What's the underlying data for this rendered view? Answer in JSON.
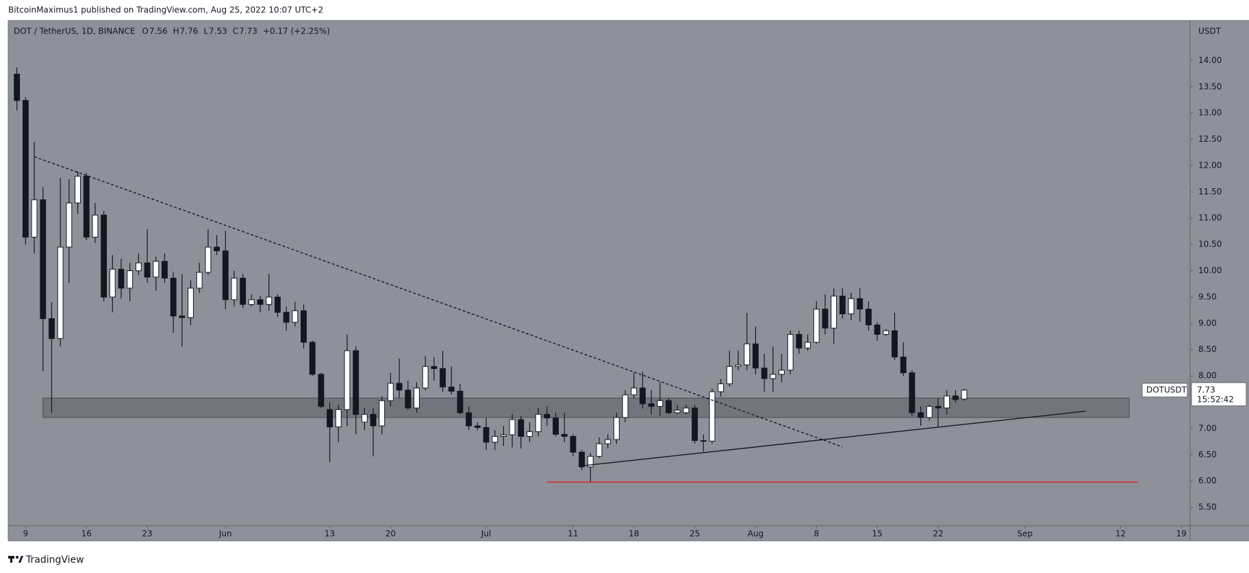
{
  "header": {
    "publisher": "BitcoinMaximus1 published on TradingView.com, Aug 25, 2022 10:07 UTC+2"
  },
  "footer": {
    "brand": "TradingView"
  },
  "chart_data": {
    "type": "candlestick",
    "title": "DOT / TetherUS, 1D, BINANCE",
    "ohlc_labels": [
      "O",
      "H",
      "L",
      "C"
    ],
    "ohlc_values": [
      7.56,
      7.76,
      7.53,
      7.73
    ],
    "change": "+0.17 (+2.25%)",
    "y_unit": "USDT",
    "x": [
      "2022-05-08",
      "2022-05-09",
      "2022-05-10",
      "2022-05-11",
      "2022-05-12",
      "2022-05-13",
      "2022-05-14",
      "2022-05-15",
      "2022-05-16",
      "2022-05-17",
      "2022-05-18",
      "2022-05-19",
      "2022-05-20",
      "2022-05-21",
      "2022-05-22",
      "2022-05-23",
      "2022-05-24",
      "2022-05-25",
      "2022-05-26",
      "2022-05-27",
      "2022-05-28",
      "2022-05-29",
      "2022-05-30",
      "2022-05-31",
      "2022-06-01",
      "2022-06-02",
      "2022-06-03",
      "2022-06-04",
      "2022-06-05",
      "2022-06-06",
      "2022-06-07",
      "2022-06-08",
      "2022-06-09",
      "2022-06-10",
      "2022-06-11",
      "2022-06-12",
      "2022-06-13",
      "2022-06-14",
      "2022-06-15",
      "2022-06-16",
      "2022-06-17",
      "2022-06-18",
      "2022-06-19",
      "2022-06-20",
      "2022-06-21",
      "2022-06-22",
      "2022-06-23",
      "2022-06-24",
      "2022-06-25",
      "2022-06-26",
      "2022-06-27",
      "2022-06-28",
      "2022-06-29",
      "2022-06-30",
      "2022-07-01",
      "2022-07-02",
      "2022-07-03",
      "2022-07-04",
      "2022-07-05",
      "2022-07-06",
      "2022-07-07",
      "2022-07-08",
      "2022-07-09",
      "2022-07-10",
      "2022-07-11",
      "2022-07-12",
      "2022-07-13",
      "2022-07-14",
      "2022-07-15",
      "2022-07-16",
      "2022-07-17",
      "2022-07-18",
      "2022-07-19",
      "2022-07-20",
      "2022-07-21",
      "2022-07-22",
      "2022-07-23",
      "2022-07-24",
      "2022-07-25",
      "2022-07-26",
      "2022-07-27",
      "2022-07-28",
      "2022-07-29",
      "2022-07-30",
      "2022-07-31",
      "2022-08-01",
      "2022-08-02",
      "2022-08-03",
      "2022-08-04",
      "2022-08-05",
      "2022-08-06",
      "2022-08-07",
      "2022-08-08",
      "2022-08-09",
      "2022-08-10",
      "2022-08-11",
      "2022-08-12",
      "2022-08-13",
      "2022-08-14",
      "2022-08-15",
      "2022-08-16",
      "2022-08-17",
      "2022-08-18",
      "2022-08-19",
      "2022-08-20",
      "2022-08-21",
      "2022-08-22",
      "2022-08-23",
      "2022-08-24",
      "2022-08-25"
    ],
    "series": [
      {
        "name": "DOTUSDT",
        "up_color": "#ffffff",
        "down_color": "#131722",
        "open": [
          13.74,
          13.24,
          10.64,
          11.35,
          9.09,
          8.71,
          10.45,
          11.29,
          11.8,
          10.64,
          11.06,
          9.5,
          10.03,
          9.67,
          10.0,
          10.15,
          9.88,
          10.18,
          9.86,
          9.14,
          9.11,
          9.67,
          9.97,
          10.45,
          10.38,
          9.45,
          9.86,
          9.36,
          9.45,
          9.36,
          9.5,
          9.21,
          9.02,
          9.24,
          8.64,
          8.03,
          7.36,
          7.03,
          7.36,
          8.48,
          7.12,
          7.27,
          7.05,
          7.53,
          7.86,
          7.73,
          7.39,
          7.77,
          8.18,
          8.14,
          7.79,
          7.71,
          7.3,
          7.05,
          7.02,
          6.74,
          6.85,
          6.88,
          7.17,
          6.85,
          6.94,
          7.27,
          7.2,
          6.89,
          6.85,
          6.55,
          6.27,
          6.47,
          6.71,
          6.79,
          7.21,
          7.64,
          7.77,
          7.47,
          7.42,
          7.53,
          7.3,
          7.3,
          7.39,
          6.77,
          6.76,
          7.7,
          7.85,
          8.18,
          8.21,
          8.61,
          8.15,
          7.95,
          8.03,
          8.11,
          8.79,
          8.53,
          8.64,
          9.27,
          8.91,
          9.52,
          9.18,
          9.47,
          9.27,
          8.97,
          8.79,
          8.86,
          8.36,
          8.06,
          7.3,
          7.21,
          7.42,
          7.39,
          7.62,
          7.56
        ],
        "high": [
          13.87,
          13.3,
          12.45,
          11.6,
          9.4,
          11.77,
          11.74,
          11.89,
          11.86,
          11.29,
          11.14,
          10.3,
          10.23,
          10.15,
          10.33,
          10.79,
          10.27,
          10.33,
          9.97,
          9.94,
          9.82,
          10.15,
          10.79,
          10.68,
          10.76,
          10.0,
          9.94,
          9.55,
          9.52,
          9.94,
          9.55,
          9.32,
          9.41,
          9.36,
          8.67,
          8.06,
          7.5,
          7.45,
          8.79,
          8.56,
          7.39,
          7.39,
          7.61,
          8.06,
          8.33,
          7.91,
          7.88,
          8.38,
          8.36,
          8.48,
          8.18,
          7.85,
          7.42,
          7.12,
          7.2,
          6.97,
          7.05,
          7.27,
          7.24,
          7.12,
          7.39,
          7.42,
          7.3,
          7.3,
          6.89,
          6.59,
          6.53,
          6.83,
          6.89,
          7.3,
          7.73,
          8.06,
          8.08,
          7.73,
          7.88,
          7.58,
          7.45,
          7.45,
          7.45,
          6.89,
          7.76,
          7.94,
          8.48,
          8.48,
          9.2,
          8.94,
          8.42,
          8.56,
          8.42,
          8.86,
          8.86,
          8.79,
          9.42,
          9.55,
          9.67,
          9.67,
          9.58,
          9.67,
          9.42,
          9.02,
          8.89,
          9.2,
          8.64,
          8.11,
          7.42,
          7.45,
          7.58,
          7.73,
          7.73,
          7.76
        ],
        "low": [
          13.05,
          10.5,
          10.33,
          8.09,
          7.3,
          8.56,
          9.77,
          11.08,
          10.58,
          10.53,
          9.42,
          9.21,
          9.47,
          9.42,
          9.92,
          9.77,
          9.62,
          9.77,
          8.82,
          8.56,
          8.97,
          9.58,
          9.92,
          10.3,
          9.27,
          9.32,
          9.29,
          9.32,
          9.21,
          9.24,
          9.12,
          8.86,
          8.94,
          8.52,
          8.0,
          7.39,
          6.36,
          6.74,
          7.05,
          6.89,
          6.97,
          6.47,
          6.89,
          7.42,
          7.58,
          7.35,
          7.3,
          7.73,
          7.91,
          7.7,
          7.65,
          7.27,
          6.97,
          6.97,
          6.59,
          6.59,
          6.67,
          6.64,
          6.62,
          6.74,
          6.85,
          7.05,
          6.85,
          6.74,
          6.47,
          6.21,
          5.98,
          6.44,
          6.62,
          6.71,
          7.12,
          7.58,
          7.38,
          7.27,
          7.24,
          7.27,
          7.27,
          7.27,
          6.71,
          6.56,
          6.71,
          7.61,
          7.8,
          8.11,
          8.11,
          8.03,
          7.7,
          7.7,
          7.88,
          8.03,
          8.42,
          8.48,
          8.61,
          8.79,
          8.61,
          9.09,
          9.06,
          9.03,
          8.86,
          8.67,
          8.76,
          8.3,
          8.0,
          7.24,
          7.05,
          7.15,
          7.02,
          7.27,
          7.5,
          7.53
        ],
        "close": [
          13.24,
          10.64,
          11.35,
          9.09,
          8.71,
          10.45,
          11.29,
          11.8,
          10.64,
          11.06,
          9.5,
          10.03,
          9.67,
          10.0,
          10.15,
          9.88,
          10.18,
          9.86,
          9.14,
          9.11,
          9.67,
          9.97,
          10.45,
          10.38,
          9.45,
          9.86,
          9.36,
          9.45,
          9.36,
          9.5,
          9.21,
          9.02,
          9.24,
          8.64,
          8.03,
          7.42,
          7.03,
          7.36,
          8.48,
          7.27,
          7.27,
          7.05,
          7.53,
          7.86,
          7.73,
          7.39,
          7.77,
          8.18,
          8.14,
          7.79,
          7.71,
          7.3,
          7.05,
          7.02,
          6.74,
          6.85,
          6.88,
          7.17,
          6.85,
          6.94,
          7.27,
          7.2,
          6.89,
          6.85,
          6.55,
          6.27,
          6.47,
          6.71,
          6.79,
          7.21,
          7.64,
          7.77,
          7.47,
          7.42,
          7.53,
          7.3,
          7.35,
          7.39,
          6.77,
          6.76,
          7.7,
          7.85,
          8.18,
          8.21,
          8.61,
          8.15,
          7.95,
          8.03,
          8.11,
          8.79,
          8.53,
          8.64,
          9.27,
          8.91,
          9.52,
          9.18,
          9.47,
          9.27,
          8.97,
          8.79,
          8.86,
          8.36,
          8.06,
          7.3,
          7.21,
          7.42,
          7.39,
          7.62,
          7.55,
          7.73
        ]
      }
    ],
    "xlim": [
      "2022-05-07",
      "2022-09-20"
    ],
    "xticks": [
      {
        "value": "2022-05-09",
        "label": "9"
      },
      {
        "value": "2022-05-16",
        "label": "16"
      },
      {
        "value": "2022-05-23",
        "label": "23"
      },
      {
        "value": "2022-06-01",
        "label": "Jun"
      },
      {
        "value": "2022-06-13",
        "label": "13"
      },
      {
        "value": "2022-06-20",
        "label": "20"
      },
      {
        "value": "2022-07-01",
        "label": "Jul"
      },
      {
        "value": "2022-07-11",
        "label": "11"
      },
      {
        "value": "2022-07-18",
        "label": "18"
      },
      {
        "value": "2022-07-25",
        "label": "25"
      },
      {
        "value": "2022-08-01",
        "label": "Aug"
      },
      {
        "value": "2022-08-08",
        "label": "8"
      },
      {
        "value": "2022-08-15",
        "label": "15"
      },
      {
        "value": "2022-08-22",
        "label": "22"
      },
      {
        "value": "2022-09-01",
        "label": "Sep"
      },
      {
        "value": "2022-09-12",
        "label": "12"
      },
      {
        "value": "2022-09-19",
        "label": "19"
      }
    ],
    "ylim": [
      5.15,
      14.76
    ],
    "yticks": [
      {
        "value": 5.5,
        "label": "5.50"
      },
      {
        "value": 6,
        "label": "6.00"
      },
      {
        "value": 6.5,
        "label": "6.50"
      },
      {
        "value": 7,
        "label": "7.00"
      },
      {
        "value": 7.5,
        "label": "7.50"
      },
      {
        "value": 8,
        "label": "8.00"
      },
      {
        "value": 8.5,
        "label": "8.50"
      },
      {
        "value": 9,
        "label": "9.00"
      },
      {
        "value": 9.5,
        "label": "9.50"
      },
      {
        "value": 10,
        "label": "10.00"
      },
      {
        "value": 10.5,
        "label": "10.50"
      },
      {
        "value": 11,
        "label": "11.00"
      },
      {
        "value": 11.5,
        "label": "11.50"
      },
      {
        "value": 12,
        "label": "12.00"
      },
      {
        "value": 12.5,
        "label": "12.50"
      },
      {
        "value": 13,
        "label": "13.00"
      },
      {
        "value": 13.5,
        "label": "13.50"
      },
      {
        "value": 14,
        "label": "14.00"
      }
    ],
    "grid": false,
    "last_price": {
      "name": "DOTUSDT",
      "value": 7.73,
      "countdown": "15:52:42"
    },
    "annotations": [
      {
        "type": "band",
        "x": [
          "2022-05-11",
          "2022-09-13"
        ],
        "y": [
          7.21,
          7.58
        ],
        "color": "#5d5f66"
      },
      {
        "type": "line",
        "style": "dashed",
        "x": [
          "2022-05-10",
          "2022-08-11"
        ],
        "y": [
          12.17,
          6.65
        ],
        "color": "#131722"
      },
      {
        "type": "line",
        "style": "solid",
        "x": [
          "2022-07-12",
          "2022-09-08"
        ],
        "y": [
          6.29,
          7.33
        ],
        "color": "#131722"
      },
      {
        "type": "line",
        "style": "solid",
        "x": [
          "2022-07-08",
          "2022-09-14"
        ],
        "y": [
          5.98,
          5.98
        ],
        "color": "#e0241f"
      }
    ]
  }
}
